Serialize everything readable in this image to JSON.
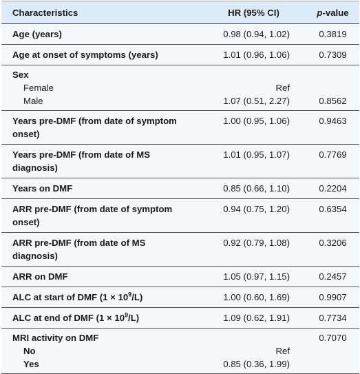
{
  "table": {
    "headers": {
      "characteristics": "Characteristics",
      "hr": "HR (95% CI)",
      "p_value_prefix": "p",
      "p_value_suffix": "-value"
    },
    "rows": [
      {
        "label": "Age (years)",
        "hr": "0.98 (0.94, 1.02)",
        "p": "0.3819"
      },
      {
        "label": "Age at onset of symptoms (years)",
        "hr": "1.01 (0.96, 1.06)",
        "p": "0.7309"
      },
      {
        "label": "Sex",
        "sub": [
          {
            "label": "Female",
            "hr": "Ref",
            "p": ""
          },
          {
            "label": "Male",
            "hr": "1.07 (0.51, 2.27)",
            "p": "0.8562"
          }
        ]
      },
      {
        "label_line1": "Years pre-DMF (from date of symptom",
        "label_line2": "onset)",
        "hr": "1.00 (0.95, 1.06)",
        "p": "0.9463"
      },
      {
        "label_line1": "Years pre-DMF (from date of MS",
        "label_line2": "diagnosis)",
        "hr": "1.01 (0.95, 1.07)",
        "p": "0.7769"
      },
      {
        "label": "Years on DMF",
        "hr": "0.85 (0.66, 1.10)",
        "p": "0.2204"
      },
      {
        "label_line1": "ARR pre-DMF (from date of symptom",
        "label_line2": "onset)",
        "hr": "0.94 (0.75, 1.20)",
        "p": "0.6354"
      },
      {
        "label_line1": "ARR pre-DMF (from date of MS",
        "label_line2": "diagnosis)",
        "hr": "0.92 (0.79, 1.08)",
        "p": "0.3206"
      },
      {
        "label": "ARR on DMF",
        "hr": "1.05 (0.97, 1.15)",
        "p": "0.2457"
      },
      {
        "label_pre": "ALC at start of DMF (1 × 10",
        "label_sup": "9",
        "label_post": "/L)",
        "hr": "1.00 (0.60, 1.69)",
        "p": "0.9907"
      },
      {
        "label_pre": "ALC at end of DMF (1 × 10",
        "label_sup": "9",
        "label_post": "/L)",
        "hr": "1.09 (0.62, 1.91)",
        "p": "0.7734"
      },
      {
        "label": "MRI activity on DMF",
        "p": "0.7070",
        "sub": [
          {
            "label": "No",
            "hr": "Ref",
            "p": ""
          },
          {
            "label": "Yes",
            "hr": "0.85 (0.36, 1.99)",
            "p": ""
          }
        ]
      }
    ]
  }
}
